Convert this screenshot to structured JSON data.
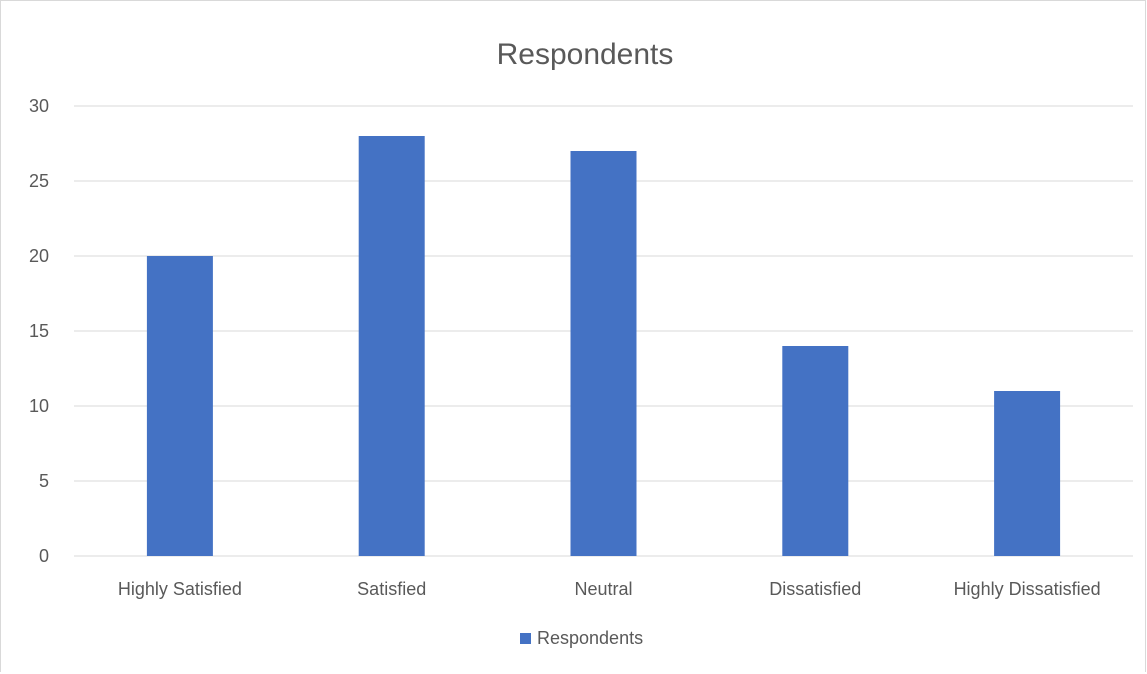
{
  "chart_data": {
    "type": "bar",
    "title": "Respondents",
    "categories": [
      "Highly Satisfied",
      "Satisfied",
      "Neutral",
      "Dissatisfied",
      "Highly Dissatisfied"
    ],
    "series": [
      {
        "name": "Respondents",
        "values": [
          20,
          28,
          27,
          14,
          11
        ],
        "color": "#4472c4"
      }
    ],
    "xlabel": "",
    "ylabel": "",
    "ylim": [
      0,
      30
    ],
    "yticks": [
      0,
      5,
      10,
      15,
      20,
      25,
      30
    ],
    "grid": true,
    "legend": "bottom"
  }
}
